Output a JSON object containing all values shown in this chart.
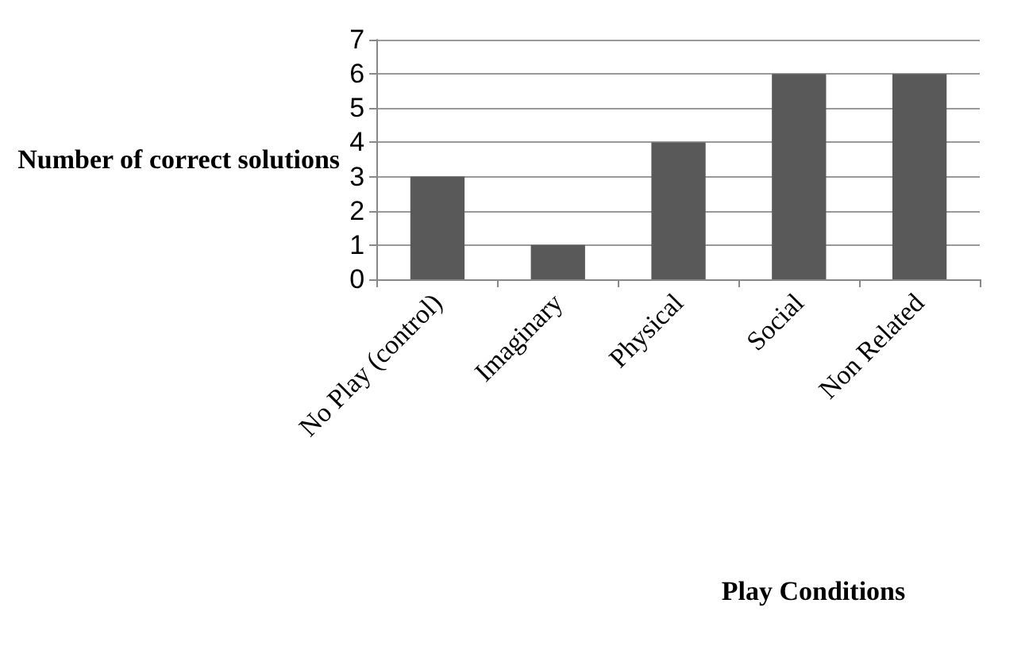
{
  "chart_data": {
    "type": "bar",
    "xlabel": "Play Conditions",
    "ylabel": "Number of correct solutions",
    "categories": [
      "No Play (control)",
      "Imaginary",
      "Physical",
      "Social",
      "Non Related"
    ],
    "values": [
      3,
      1,
      4,
      6,
      6
    ],
    "color": "#595959",
    "ylim": [
      0,
      7
    ],
    "yticks": [
      0,
      1,
      2,
      3,
      4,
      5,
      6,
      7
    ],
    "grid": "y"
  }
}
